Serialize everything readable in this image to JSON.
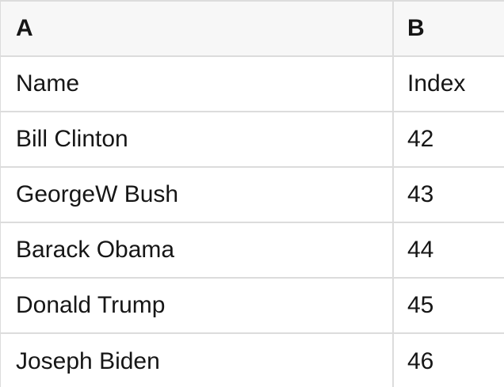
{
  "table": {
    "columns": [
      {
        "id": "A",
        "label": "A"
      },
      {
        "id": "B",
        "label": "B"
      }
    ],
    "rows": [
      {
        "a": "Name",
        "b": "Index"
      },
      {
        "a": "Bill Clinton",
        "b": "42"
      },
      {
        "a": "GeorgeW Bush",
        "b": "43"
      },
      {
        "a": "Barack Obama",
        "b": "44"
      },
      {
        "a": "Donald Trump",
        "b": "45"
      },
      {
        "a": "Joseph Biden",
        "b": "46"
      }
    ]
  },
  "colors": {
    "header_bg": "#f7f7f7",
    "row_bg": "#ffffff",
    "border": "#dcdcdc",
    "text": "#161616"
  }
}
